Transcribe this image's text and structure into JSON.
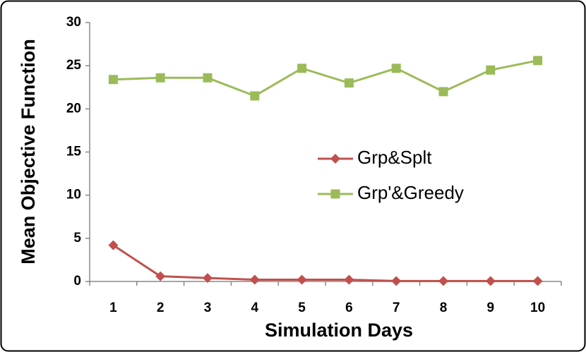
{
  "chart_data": {
    "type": "line",
    "x_label": "Simulation Days",
    "y_label": "Mean Objective Function",
    "categories": [
      "1",
      "2",
      "3",
      "4",
      "5",
      "6",
      "7",
      "8",
      "9",
      "10"
    ],
    "series": [
      {
        "name": "Grp&Splt",
        "color": "#c0504d",
        "marker": "diamond",
        "values": [
          4.2,
          0.6,
          0.4,
          0.2,
          0.2,
          0.2,
          0.05,
          0.05,
          0.05,
          0.05
        ]
      },
      {
        "name": "Grp'&Greedy",
        "color": "#9bbb59",
        "marker": "square",
        "values": [
          23.4,
          23.6,
          23.6,
          21.5,
          24.7,
          23.0,
          24.7,
          22.0,
          24.5,
          25.6
        ]
      }
    ],
    "ylim": [
      0,
      30
    ],
    "yticks": [
      0,
      5,
      10,
      15,
      20,
      25,
      30
    ],
    "grid": false,
    "legend": "right"
  }
}
